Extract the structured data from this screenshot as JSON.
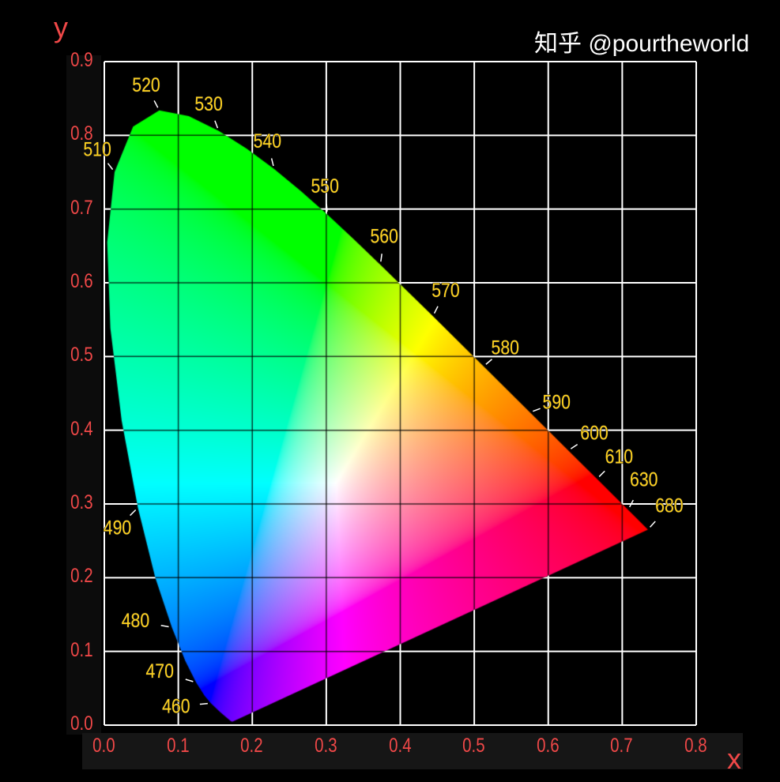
{
  "chart_data": {
    "type": "chromaticity-diagram",
    "xlabel": "x",
    "ylabel": "y",
    "xlim": [
      0,
      0.8
    ],
    "ylim": [
      0,
      0.9
    ],
    "grid": true,
    "x_ticks": [
      "0.0",
      "0.1",
      "0.2",
      "0.3",
      "0.4",
      "0.5",
      "0.6",
      "0.7",
      "0.8"
    ],
    "y_ticks": [
      "0.0",
      "0.1",
      "0.2",
      "0.3",
      "0.4",
      "0.5",
      "0.6",
      "0.7",
      "0.8",
      "0.9"
    ],
    "spectral_locus": [
      [
        380,
        0.1741,
        0.005
      ],
      [
        400,
        0.1733,
        0.0048
      ],
      [
        420,
        0.1714,
        0.0051
      ],
      [
        440,
        0.1644,
        0.0109
      ],
      [
        450,
        0.1566,
        0.0177
      ],
      [
        460,
        0.144,
        0.0297
      ],
      [
        465,
        0.1355,
        0.0399
      ],
      [
        470,
        0.1241,
        0.0578
      ],
      [
        475,
        0.1096,
        0.0868
      ],
      [
        480,
        0.0913,
        0.1327
      ],
      [
        485,
        0.0687,
        0.2007
      ],
      [
        490,
        0.0454,
        0.295
      ],
      [
        495,
        0.0235,
        0.4127
      ],
      [
        500,
        0.0082,
        0.5384
      ],
      [
        505,
        0.0039,
        0.6548
      ],
      [
        510,
        0.0139,
        0.7502
      ],
      [
        515,
        0.0389,
        0.812
      ],
      [
        520,
        0.0743,
        0.8338
      ],
      [
        525,
        0.1142,
        0.8262
      ],
      [
        530,
        0.1547,
        0.8059
      ],
      [
        535,
        0.1929,
        0.7816
      ],
      [
        540,
        0.2296,
        0.7543
      ],
      [
        545,
        0.2658,
        0.7243
      ],
      [
        550,
        0.3016,
        0.6923
      ],
      [
        555,
        0.3373,
        0.6589
      ],
      [
        560,
        0.3731,
        0.6245
      ],
      [
        570,
        0.4441,
        0.5547
      ],
      [
        580,
        0.5125,
        0.4866
      ],
      [
        590,
        0.5752,
        0.4242
      ],
      [
        600,
        0.627,
        0.3725
      ],
      [
        610,
        0.6658,
        0.334
      ],
      [
        620,
        0.6915,
        0.3083
      ],
      [
        630,
        0.7079,
        0.292
      ],
      [
        640,
        0.719,
        0.2809
      ],
      [
        680,
        0.7347,
        0.2653
      ],
      [
        700,
        0.7347,
        0.2653
      ]
    ],
    "wavelength_labels": [
      "460",
      "470",
      "480",
      "490",
      "510",
      "520",
      "530",
      "540",
      "550",
      "560",
      "570",
      "580",
      "590",
      "600",
      "610",
      "630",
      "680"
    ],
    "colors": {
      "axis_text": "#f04848",
      "grid": "#ffffff",
      "wavelength_text": "#ffd21e"
    }
  },
  "watermark": "知乎 @pourtheworld"
}
